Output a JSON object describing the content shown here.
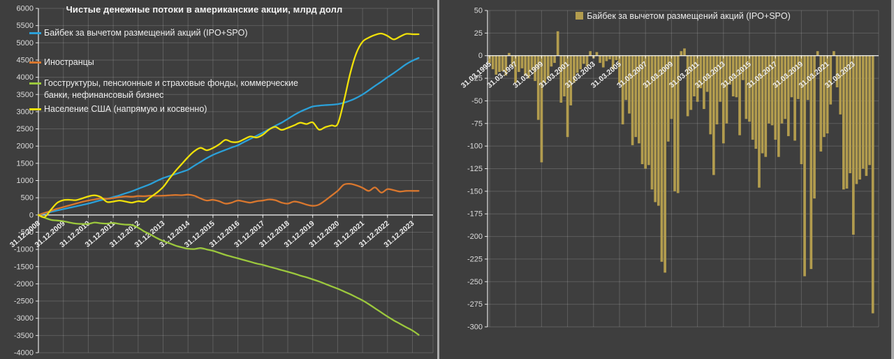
{
  "page": {
    "background": "#3e3e3e"
  },
  "chart_data": [
    {
      "type": "line",
      "title": "Чистые денежные потоки в американские акции, млрд долл",
      "ylim": [
        -4000,
        6000
      ],
      "y_ticks": [
        6000,
        5500,
        5000,
        4500,
        4000,
        3500,
        3000,
        2500,
        2000,
        1500,
        1000,
        500,
        0,
        -500,
        -1000,
        -1500,
        -2000,
        -2500,
        -3000,
        -3500,
        -4000
      ],
      "x_tick_labels": [
        "31.12.2008",
        "31.12.2009",
        "31.12.2010",
        "31.12.2011",
        "31.12.2012",
        "31.12.2013",
        "31.12.2014",
        "31.12.2015",
        "31.12.2016",
        "31.12.2017",
        "31.12.2018",
        "31.12.2019",
        "31.12.2020",
        "31.12.2021",
        "31.12.2022",
        "31.12.2023"
      ],
      "x_tick_indices": [
        0,
        4,
        8,
        12,
        16,
        20,
        24,
        28,
        32,
        36,
        40,
        44,
        48,
        52,
        56,
        60
      ],
      "x_start": "31.12.2008",
      "x_frequency": "quarterly",
      "grid": true,
      "legend_position": "top-left",
      "series": [
        {
          "name": "Байбек за вычетом размещений акций (IPO+SPO)",
          "color": "#2ba0d8",
          "values": [
            0,
            40,
            90,
            130,
            170,
            210,
            250,
            290,
            330,
            380,
            430,
            470,
            520,
            570,
            630,
            690,
            760,
            830,
            900,
            990,
            1070,
            1130,
            1190,
            1250,
            1315,
            1430,
            1540,
            1650,
            1745,
            1820,
            1890,
            1960,
            2025,
            2120,
            2210,
            2300,
            2390,
            2490,
            2590,
            2680,
            2790,
            2900,
            3000,
            3080,
            3150,
            3175,
            3190,
            3200,
            3220,
            3260,
            3320,
            3400,
            3500,
            3620,
            3750,
            3870,
            4000,
            4120,
            4250,
            4380,
            4480,
            4560
          ]
        },
        {
          "name": "Иностранцы",
          "color": "#d9772e",
          "values": [
            0,
            60,
            120,
            180,
            230,
            280,
            330,
            380,
            420,
            450,
            480,
            470,
            490,
            520,
            540,
            530,
            550,
            545,
            560,
            555,
            560,
            570,
            580,
            575,
            590,
            560,
            480,
            420,
            440,
            400,
            330,
            360,
            420,
            390,
            360,
            400,
            420,
            450,
            430,
            360,
            330,
            390,
            360,
            300,
            265,
            300,
            420,
            560,
            700,
            880,
            905,
            860,
            790,
            700,
            800,
            650,
            750,
            720,
            680,
            700,
            700,
            700
          ]
        },
        {
          "name": "Госструктуры, пенсионные и страховые фонды, коммерческие банки, нефинансовый бизнес",
          "color": "#9cc83d",
          "values": [
            0,
            -80,
            -140,
            -160,
            -180,
            -220,
            -250,
            -260,
            -260,
            -220,
            -240,
            -250,
            -230,
            -260,
            -280,
            -290,
            -370,
            -480,
            -570,
            -670,
            -755,
            -820,
            -890,
            -940,
            -980,
            -990,
            -960,
            -1000,
            -1040,
            -1100,
            -1160,
            -1210,
            -1260,
            -1310,
            -1360,
            -1410,
            -1450,
            -1500,
            -1550,
            -1600,
            -1650,
            -1700,
            -1760,
            -1810,
            -1870,
            -1930,
            -2000,
            -2070,
            -2140,
            -2220,
            -2300,
            -2390,
            -2480,
            -2590,
            -2710,
            -2830,
            -2950,
            -3060,
            -3160,
            -3260,
            -3355,
            -3480
          ]
        },
        {
          "name": "Население США (напрямую и косвенно)",
          "color": "#efe00a",
          "values": [
            0,
            -60,
            150,
            350,
            430,
            440,
            430,
            480,
            540,
            570,
            520,
            380,
            390,
            420,
            390,
            360,
            400,
            390,
            520,
            650,
            810,
            1050,
            1280,
            1480,
            1680,
            1850,
            1950,
            1880,
            1945,
            2050,
            2180,
            2120,
            2120,
            2200,
            2280,
            2250,
            2330,
            2480,
            2560,
            2470,
            2530,
            2600,
            2680,
            2640,
            2690,
            2480,
            2550,
            2600,
            2640,
            3300,
            4100,
            4700,
            5030,
            5150,
            5230,
            5270,
            5200,
            5100,
            5180,
            5260,
            5250,
            5250
          ]
        }
      ]
    },
    {
      "type": "bar",
      "legend": "Байбек за вычетом размещений акций (IPO+SPO)",
      "color": "#b29c4e",
      "ylim": [
        -300,
        50
      ],
      "y_ticks": [
        50,
        25,
        0,
        -25,
        -50,
        -75,
        -100,
        -125,
        -150,
        -175,
        -200,
        -225,
        -250,
        -275,
        -300
      ],
      "x_tick_labels": [
        "31.03.1995",
        "31.03.1997",
        "31.03.1999",
        "31.03.2001",
        "31.03.2003",
        "31.03.2005",
        "31.03.2007",
        "31.03.2009",
        "31.03.2011",
        "31.03.2013",
        "31.03.2015",
        "31.03.2017",
        "31.03.2019",
        "31.03.2021",
        "31.03.2023"
      ],
      "x_tick_indices": [
        0,
        8,
        16,
        24,
        32,
        40,
        48,
        56,
        64,
        72,
        80,
        88,
        96,
        104,
        112
      ],
      "x_start": "31.03.1995",
      "x_frequency": "quarterly",
      "grid": true,
      "legend_position": "top-center",
      "values": [
        -8,
        -15,
        -21,
        -18,
        -17,
        -22,
        3,
        -12,
        -30,
        -18,
        -14,
        -22,
        -25,
        -16,
        -28,
        -71,
        -118,
        -30,
        -25,
        -12,
        -8,
        27,
        -52,
        -45,
        -90,
        -55,
        -30,
        -19,
        -15,
        -9,
        -12,
        5,
        -3,
        4,
        -8,
        -13,
        -6,
        -4,
        -15,
        -5,
        -31,
        -76,
        -49,
        -64,
        -99,
        -90,
        -97,
        -120,
        -125,
        -121,
        -148,
        -162,
        -166,
        -228,
        -240,
        -95,
        -70,
        -150,
        -152,
        5,
        8,
        -67,
        -60,
        -45,
        -51,
        -36,
        -59,
        -40,
        -87,
        -132,
        -76,
        -51,
        -97,
        -75,
        -32,
        -45,
        -46,
        -88,
        -27,
        -70,
        -73,
        -93,
        -103,
        -146,
        -108,
        -112,
        -75,
        -77,
        -93,
        -112,
        -75,
        -70,
        -89,
        -46,
        -94,
        -48,
        -120,
        -244,
        -49,
        -236,
        -158,
        5,
        -106,
        -90,
        -86,
        -54,
        5,
        -35,
        -65,
        -148,
        -147,
        -130,
        -198,
        -142,
        -137,
        -125,
        -133,
        -121,
        -285
      ]
    }
  ]
}
